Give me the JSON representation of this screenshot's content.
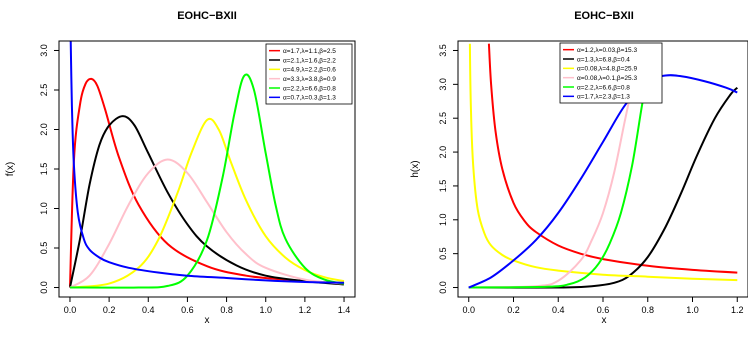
{
  "chart_data": [
    {
      "type": "line",
      "title": "EOHC−BXII",
      "xlabel": "x",
      "ylabel": "f(x)",
      "xlim": [
        0,
        1.4
      ],
      "ylim": [
        0,
        3.0
      ],
      "xticks": [
        "0.0",
        "0.2",
        "0.4",
        "0.6",
        "0.8",
        "1.0",
        "1.2",
        "1.4"
      ],
      "yticks": [
        "0.0",
        "0.5",
        "1.0",
        "1.5",
        "2.0",
        "2.5",
        "3.0"
      ],
      "legend_position": "top-right",
      "series": [
        {
          "name": "α=1.7,λ=1.1,β=2.5",
          "color": "#ff0000",
          "x": [
            0.0,
            0.02,
            0.05,
            0.08,
            0.11,
            0.14,
            0.18,
            0.25,
            0.35,
            0.5,
            0.7,
            0.9,
            1.1,
            1.4
          ],
          "y": [
            0.0,
            1.6,
            2.3,
            2.58,
            2.64,
            2.55,
            2.25,
            1.65,
            1.05,
            0.55,
            0.27,
            0.15,
            0.1,
            0.05
          ]
        },
        {
          "name": "α=2.1,λ=1.6,β=2.2",
          "color": "#000000",
          "x": [
            0.0,
            0.05,
            0.1,
            0.15,
            0.2,
            0.27,
            0.33,
            0.4,
            0.5,
            0.6,
            0.7,
            0.85,
            1.0,
            1.2,
            1.4
          ],
          "y": [
            0.0,
            0.6,
            1.3,
            1.8,
            2.05,
            2.17,
            2.05,
            1.7,
            1.2,
            0.8,
            0.52,
            0.28,
            0.15,
            0.08,
            0.04
          ]
        },
        {
          "name": "α=4.9,λ=2.2,β=0.6",
          "color": "#ffff00",
          "x": [
            0.0,
            0.2,
            0.35,
            0.45,
            0.55,
            0.62,
            0.7,
            0.76,
            0.82,
            0.9,
            1.0,
            1.1,
            1.2,
            1.3,
            1.4
          ],
          "y": [
            0.0,
            0.05,
            0.25,
            0.6,
            1.2,
            1.7,
            2.12,
            2.0,
            1.6,
            1.1,
            0.65,
            0.38,
            0.22,
            0.13,
            0.08
          ]
        },
        {
          "name": "α=3.3,λ=3.8,β=0.9",
          "color": "#ffc0cb",
          "x": [
            0.0,
            0.1,
            0.2,
            0.3,
            0.4,
            0.5,
            0.6,
            0.7,
            0.8,
            0.9,
            1.0,
            1.2,
            1.4
          ],
          "y": [
            0.0,
            0.15,
            0.55,
            1.05,
            1.45,
            1.62,
            1.45,
            1.08,
            0.7,
            0.42,
            0.25,
            0.1,
            0.05
          ]
        },
        {
          "name": "α=2.2,λ=6.6,β=0.8",
          "color": "#00ff00",
          "x": [
            0.0,
            0.35,
            0.5,
            0.6,
            0.7,
            0.78,
            0.84,
            0.89,
            0.94,
            1.0,
            1.05,
            1.1,
            1.2,
            1.3,
            1.4
          ],
          "y": [
            0.0,
            0.0,
            0.02,
            0.15,
            0.6,
            1.4,
            2.2,
            2.68,
            2.5,
            1.7,
            1.05,
            0.62,
            0.25,
            0.1,
            0.05
          ]
        },
        {
          "name": "α=0.7,λ=0.3,β=1.3",
          "color": "#0000ff",
          "x": [
            0.003,
            0.01,
            0.02,
            0.04,
            0.07,
            0.1,
            0.15,
            0.2,
            0.3,
            0.45,
            0.6,
            0.8,
            1.0,
            1.2,
            1.4
          ],
          "y": [
            3.2,
            2.3,
            1.55,
            0.95,
            0.62,
            0.48,
            0.38,
            0.32,
            0.25,
            0.19,
            0.15,
            0.12,
            0.09,
            0.07,
            0.06
          ]
        }
      ]
    },
    {
      "type": "line",
      "title": "EOHC−BXII",
      "xlabel": "x",
      "ylabel": "h(x)",
      "xlim": [
        0,
        1.2
      ],
      "ylim": [
        0,
        3.5
      ],
      "xticks": [
        "0.0",
        "0.2",
        "0.4",
        "0.6",
        "0.8",
        "1.0",
        "1.2"
      ],
      "yticks": [
        "0.0",
        "0.5",
        "1.0",
        "1.5",
        "2.0",
        "2.5",
        "3.0",
        "3.5"
      ],
      "legend_position": "top-center",
      "series": [
        {
          "name": "α=1.2,λ=0.03,β=15.3",
          "color": "#ff0000",
          "x": [
            0.09,
            0.1,
            0.12,
            0.15,
            0.2,
            0.25,
            0.3,
            0.4,
            0.5,
            0.6,
            0.8,
            1.0,
            1.2
          ],
          "y": [
            3.6,
            3.0,
            2.3,
            1.75,
            1.25,
            0.98,
            0.82,
            0.62,
            0.5,
            0.42,
            0.32,
            0.26,
            0.22
          ]
        },
        {
          "name": "α=1.3,λ=6.8,β=0.4",
          "color": "#000000",
          "x": [
            0.0,
            0.4,
            0.55,
            0.65,
            0.72,
            0.8,
            0.88,
            0.95,
            1.02,
            1.1,
            1.17,
            1.2
          ],
          "y": [
            0.0,
            0.0,
            0.02,
            0.07,
            0.18,
            0.45,
            0.9,
            1.4,
            1.95,
            2.5,
            2.85,
            2.95
          ]
        },
        {
          "name": "α=0.08,λ=4.8,β=25.9",
          "color": "#ffff00",
          "x": [
            0.005,
            0.01,
            0.02,
            0.04,
            0.07,
            0.1,
            0.15,
            0.2,
            0.3,
            0.4,
            0.6,
            0.8,
            1.0,
            1.2
          ],
          "y": [
            3.6,
            2.6,
            1.8,
            1.15,
            0.8,
            0.62,
            0.48,
            0.4,
            0.3,
            0.25,
            0.19,
            0.16,
            0.13,
            0.11
          ]
        },
        {
          "name": "α=0.08,λ=0.1,β=25.3",
          "color": "#ffc0cb",
          "x": [
            0.0,
            0.3,
            0.4,
            0.5,
            0.55,
            0.6,
            0.65,
            0.7,
            0.74,
            0.78
          ],
          "y": [
            0.0,
            0.02,
            0.1,
            0.4,
            0.7,
            1.1,
            1.7,
            2.5,
            3.1,
            3.6
          ]
        },
        {
          "name": "α=2.2,λ=6.6,β=0.8",
          "color": "#00ff00",
          "x": [
            0.0,
            0.35,
            0.45,
            0.52,
            0.58,
            0.63,
            0.68,
            0.73,
            0.77,
            0.8,
            0.82
          ],
          "y": [
            0.0,
            0.01,
            0.05,
            0.15,
            0.35,
            0.65,
            1.1,
            1.8,
            2.6,
            3.2,
            3.6
          ]
        },
        {
          "name": "α=1.7,λ=2.3,β=1.3",
          "color": "#0000ff",
          "x": [
            0.0,
            0.1,
            0.2,
            0.3,
            0.4,
            0.5,
            0.6,
            0.7,
            0.8,
            0.88,
            0.95,
            1.05,
            1.15,
            1.2
          ],
          "y": [
            0.0,
            0.15,
            0.4,
            0.7,
            1.1,
            1.6,
            2.15,
            2.7,
            3.05,
            3.13,
            3.12,
            3.05,
            2.95,
            2.88
          ]
        }
      ]
    }
  ]
}
